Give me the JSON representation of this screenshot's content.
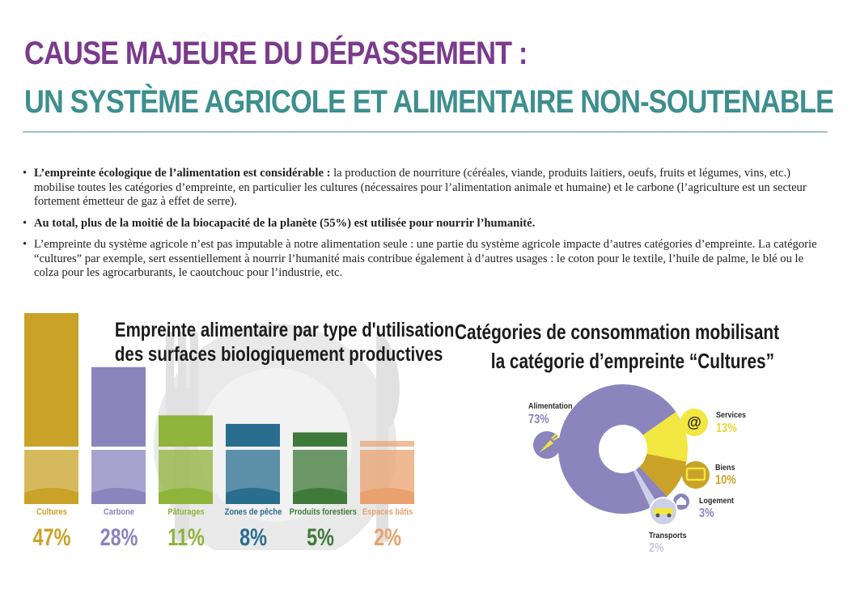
{
  "header": {
    "title_line1": "CAUSE MAJEURE DU DÉPASSEMENT :",
    "title_line2": "UN SYSTÈME AGRICOLE ET ALIMENTAIRE NON-SOUTENABLE"
  },
  "bullets": [
    {
      "bold": "L’empreinte écologique de l’alimentation est considérable :",
      "text": " la production de nourriture (céréales, viande, produits laitiers, oeufs, fruits et légumes, vins, etc.) mobilise toutes les catégories d’empreinte, en particulier les cultures (nécessaires pour l’alimentation animale et humaine) et le carbone (l’agriculture est un secteur fortement émetteur de gaz à effet de serre)."
    },
    {
      "bold": "Au total, plus de la moitié de la biocapacité de la planète (55%) est utilisée pour nourrir l’humanité.",
      "text": ""
    },
    {
      "bold": "",
      "text": "L’empreinte du système agricole n’est pas imputable à notre alimentation seule : une partie du système agricole impacte d’autres catégories d’empreinte. La catégorie “cultures” par exemple, sert essentiellement à nourrir l’humanité mais contribue également à d’autres usages : le coton pour le textile, l’huile de palme, le blé ou le colza pour les agrocarburants, le caoutchouc pour l’industrie, etc."
    }
  ],
  "colors": {
    "title_purple": "#7b3a8c",
    "title_teal": "#3d8f8e",
    "cultures": "#c9a227",
    "carbone": "#8b84bd",
    "paturages": "#8fb33b",
    "peche": "#2a6d8f",
    "forestiers": "#3f7a3a",
    "batis": "#e8a16f",
    "donut_purple": "#8b84bd",
    "donut_yellow": "#f2e640",
    "donut_olive": "#c9a227",
    "donut_light": "#cdd0e8"
  },
  "chart_data": [
    {
      "type": "bar",
      "title": [
        "Empreinte alimentaire par type d'utilisation",
        "des surfaces biologiquement productives"
      ],
      "categories": [
        "Cultures",
        "Carbone",
        "Pâturages",
        "Zones de pêche",
        "Produits forestiers",
        "Espaces bâtis"
      ],
      "values": [
        47,
        28,
        11,
        8,
        5,
        2
      ],
      "labels": [
        "47%",
        "28%",
        "11%",
        "8%",
        "5%",
        "2%"
      ],
      "colors": [
        "#c9a227",
        "#8b84bd",
        "#8fb33b",
        "#2a6d8f",
        "#3f7a3a",
        "#e8a16f"
      ],
      "ylim": [
        0,
        47
      ]
    },
    {
      "type": "pie",
      "title": [
        "Catégories de consommation mobilisant",
        "la catégorie d’empreinte “Cultures”"
      ],
      "categories": [
        "Alimentation",
        "Services",
        "Biens",
        "Logement",
        "Transports"
      ],
      "values": [
        73,
        13,
        10,
        3,
        2
      ],
      "labels": [
        "73%",
        "13%",
        "10%",
        "3%",
        "2%"
      ],
      "colors": [
        "#8b84bd",
        "#f2e640",
        "#c9a227",
        "#8b84bd",
        "#cdd0e8"
      ],
      "icons": [
        "carrot-icon",
        "at-sign-icon",
        "tv-icon",
        "house-icon",
        "car-icon"
      ]
    }
  ]
}
